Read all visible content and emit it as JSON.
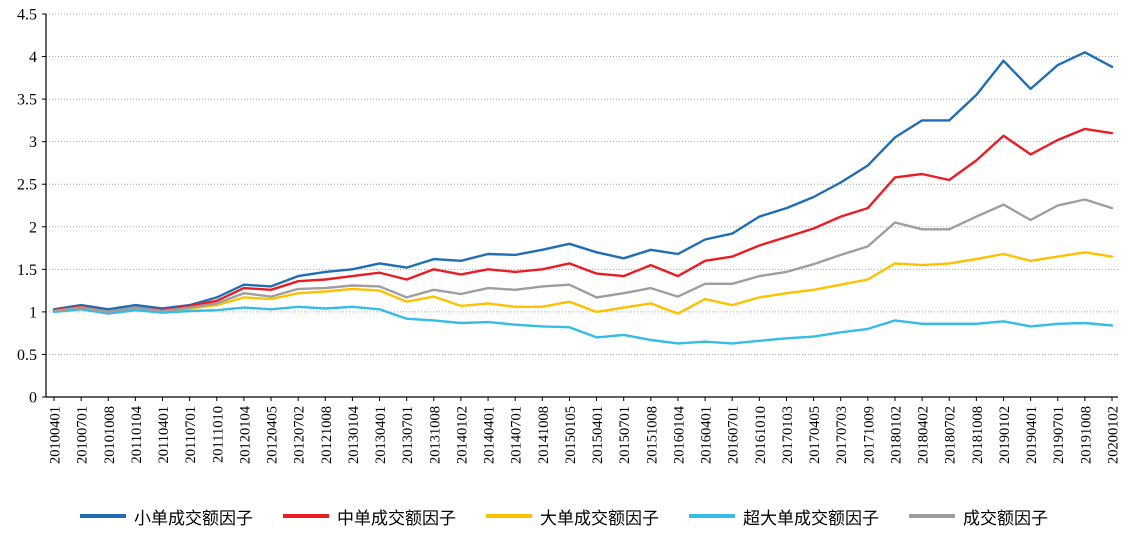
{
  "colors": {
    "axis": "#000000",
    "grid": "#A6A6A6",
    "background": "#FFFFFF"
  },
  "chart_data": {
    "type": "line",
    "title": "",
    "xlabel": "",
    "ylabel": "",
    "ylim": [
      0,
      4.5
    ],
    "ytick_step": 0.5,
    "grid": "horizontal-dotted",
    "legend_position": "bottom",
    "x_labels": [
      "20100401",
      "20100701",
      "20101008",
      "20110104",
      "20110401",
      "20110701",
      "20111010",
      "20120104",
      "20120405",
      "20120702",
      "20121008",
      "20130104",
      "20130401",
      "20130701",
      "20131008",
      "20140102",
      "20140401",
      "20140701",
      "20141008",
      "20150105",
      "20150401",
      "20150701",
      "20151008",
      "20160104",
      "20160401",
      "20160701",
      "20161010",
      "20170103",
      "20170405",
      "20170703",
      "20171009",
      "20180102",
      "20180402",
      "20180702",
      "20181008",
      "20190102",
      "20190401",
      "20190701",
      "20191008",
      "20200102"
    ],
    "series": [
      {
        "key": "small-order",
        "name": "小单成交额因子",
        "color": "#1F6EB5",
        "values": [
          1.03,
          1.08,
          1.03,
          1.08,
          1.04,
          1.08,
          1.17,
          1.32,
          1.3,
          1.42,
          1.47,
          1.5,
          1.57,
          1.52,
          1.62,
          1.6,
          1.68,
          1.67,
          1.73,
          1.8,
          1.7,
          1.63,
          1.73,
          1.68,
          1.85,
          1.92,
          2.12,
          2.22,
          2.35,
          2.52,
          2.72,
          3.05,
          3.25,
          3.25,
          3.55,
          3.95,
          3.62,
          3.9,
          4.05,
          3.88
        ]
      },
      {
        "key": "medium-order",
        "name": "中单成交额因子",
        "color": "#EC1C24",
        "values": [
          1.02,
          1.06,
          1.0,
          1.05,
          1.02,
          1.07,
          1.13,
          1.28,
          1.26,
          1.36,
          1.38,
          1.42,
          1.46,
          1.38,
          1.5,
          1.44,
          1.5,
          1.47,
          1.5,
          1.57,
          1.45,
          1.42,
          1.55,
          1.42,
          1.6,
          1.65,
          1.78,
          1.88,
          1.98,
          2.12,
          2.22,
          2.58,
          2.62,
          2.55,
          2.78,
          3.07,
          2.85,
          3.02,
          3.15,
          3.1
        ]
      },
      {
        "key": "large-order",
        "name": "大单成交额因子",
        "color": "#FFC000",
        "values": [
          1.01,
          1.05,
          1.0,
          1.04,
          1.0,
          1.04,
          1.08,
          1.17,
          1.15,
          1.22,
          1.24,
          1.27,
          1.25,
          1.12,
          1.18,
          1.07,
          1.1,
          1.06,
          1.06,
          1.12,
          1.0,
          1.05,
          1.1,
          0.98,
          1.15,
          1.08,
          1.17,
          1.22,
          1.26,
          1.32,
          1.38,
          1.57,
          1.55,
          1.57,
          1.62,
          1.68,
          1.6,
          1.65,
          1.7,
          1.65
        ]
      },
      {
        "key": "extra-large-order",
        "name": "超大单成交额因子",
        "color": "#35BCE8",
        "values": [
          1.0,
          1.03,
          0.98,
          1.02,
          0.99,
          1.01,
          1.02,
          1.05,
          1.03,
          1.06,
          1.04,
          1.06,
          1.03,
          0.92,
          0.9,
          0.87,
          0.88,
          0.85,
          0.83,
          0.82,
          0.7,
          0.73,
          0.67,
          0.63,
          0.65,
          0.63,
          0.66,
          0.69,
          0.71,
          0.76,
          0.8,
          0.9,
          0.86,
          0.86,
          0.86,
          0.89,
          0.83,
          0.86,
          0.87,
          0.84
        ]
      },
      {
        "key": "turnover",
        "name": "成交额因子",
        "color": "#9E9E9E",
        "values": [
          1.01,
          1.05,
          1.0,
          1.05,
          1.01,
          1.05,
          1.1,
          1.22,
          1.18,
          1.27,
          1.28,
          1.31,
          1.3,
          1.17,
          1.26,
          1.21,
          1.28,
          1.26,
          1.3,
          1.32,
          1.17,
          1.22,
          1.28,
          1.18,
          1.33,
          1.33,
          1.42,
          1.47,
          1.56,
          1.67,
          1.77,
          2.05,
          1.97,
          1.97,
          2.12,
          2.26,
          2.08,
          2.25,
          2.32,
          2.22
        ]
      }
    ]
  }
}
